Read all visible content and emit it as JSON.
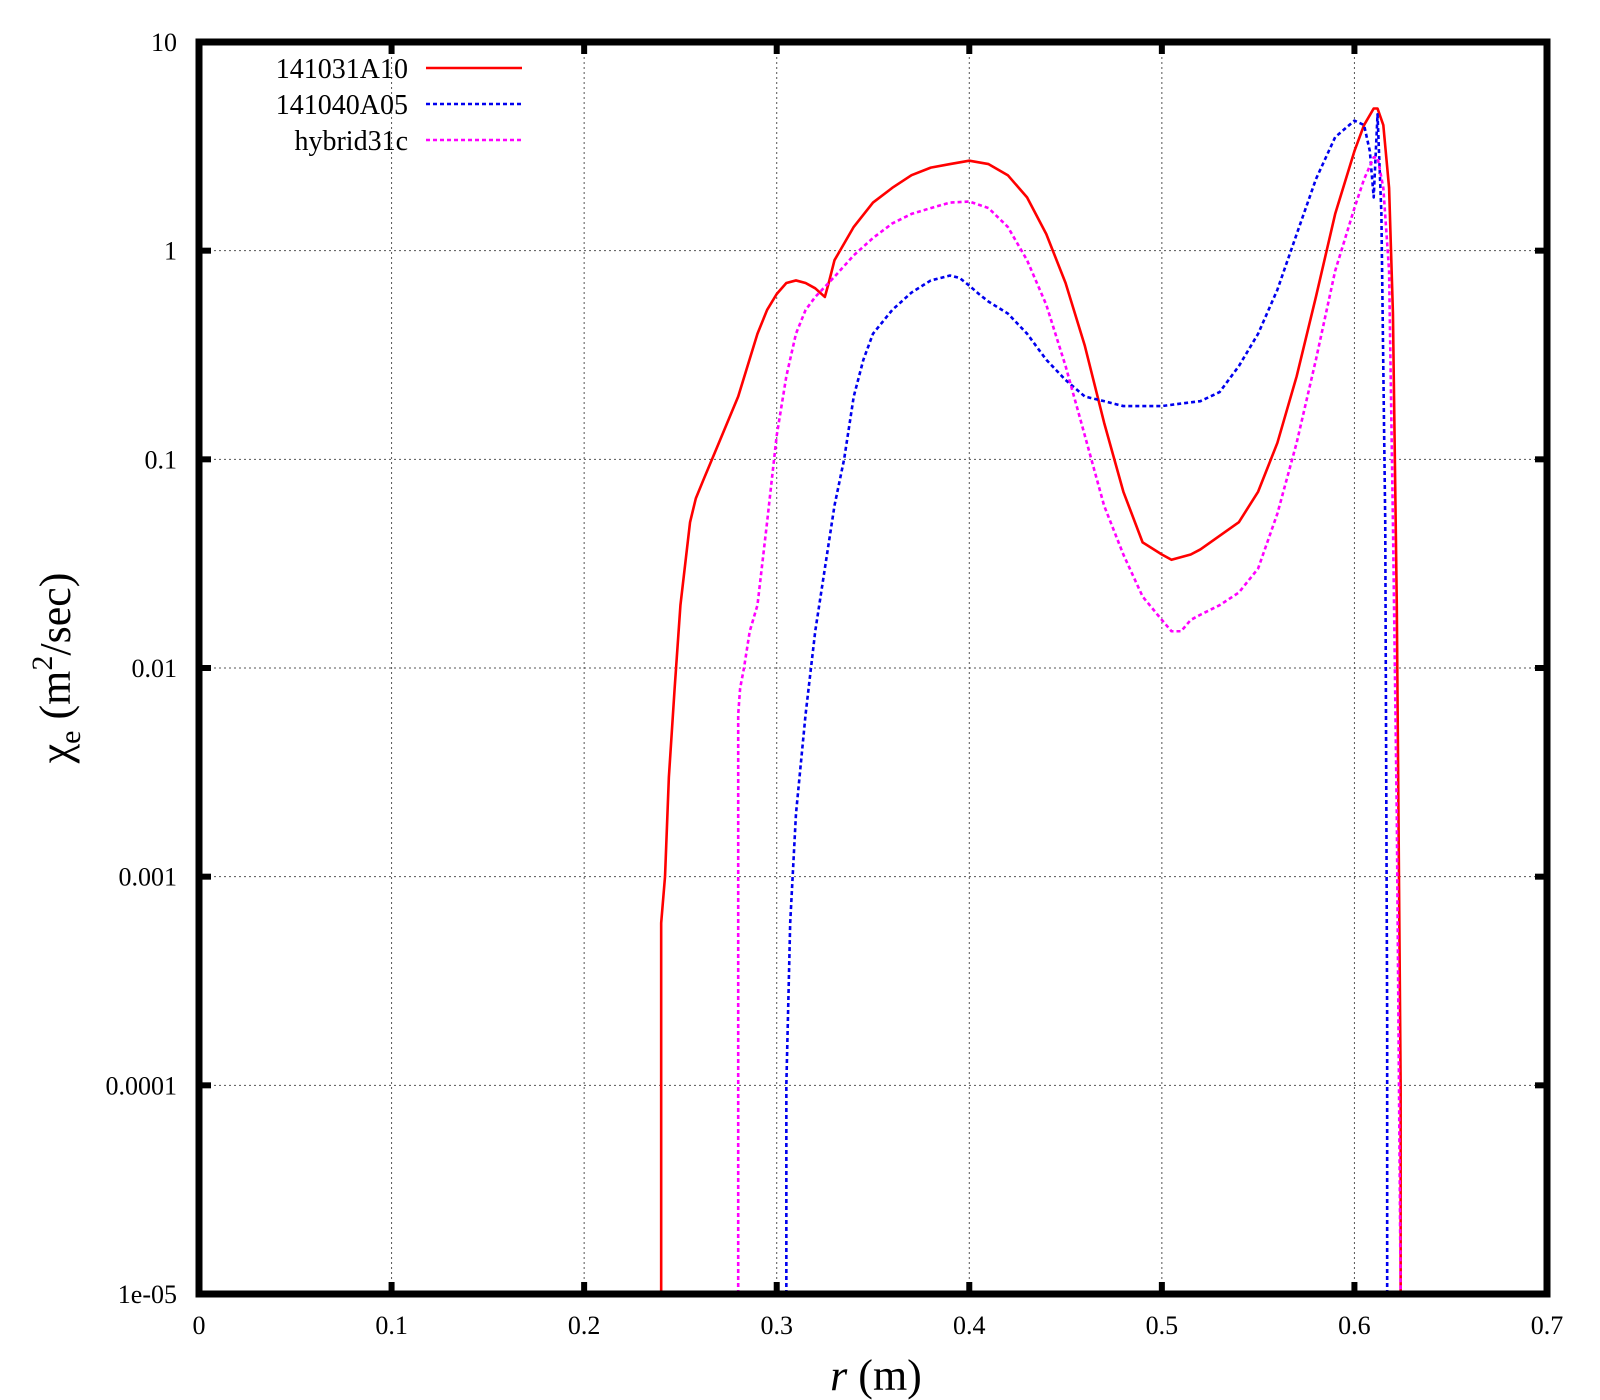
{
  "chart_data": {
    "type": "line",
    "title": "",
    "xlabel": {
      "var": "r",
      "unit": " (m)"
    },
    "ylabel": {
      "symbol": "χ",
      "sub": "e",
      "pre": " (m",
      "sup": "2",
      "post": "/sec)"
    },
    "xlim": [
      0,
      0.7
    ],
    "ylim": [
      1e-05,
      10
    ],
    "yscale": "log",
    "grid": true,
    "legend_position": "top-left",
    "x_ticks": [
      {
        "value": 0,
        "label": "0"
      },
      {
        "value": 0.1,
        "label": "0.1"
      },
      {
        "value": 0.2,
        "label": "0.2"
      },
      {
        "value": 0.3,
        "label": "0.3"
      },
      {
        "value": 0.4,
        "label": "0.4"
      },
      {
        "value": 0.5,
        "label": "0.5"
      },
      {
        "value": 0.6,
        "label": "0.6"
      },
      {
        "value": 0.7,
        "label": "0.7"
      }
    ],
    "y_ticks": [
      {
        "value": 1e-05,
        "label": "1e-05"
      },
      {
        "value": 0.0001,
        "label": "0.0001"
      },
      {
        "value": 0.001,
        "label": "0.001"
      },
      {
        "value": 0.01,
        "label": "0.01"
      },
      {
        "value": 0.1,
        "label": "0.1"
      },
      {
        "value": 1,
        "label": "1"
      },
      {
        "value": 10,
        "label": "10"
      }
    ],
    "series": [
      {
        "name": "141031A10",
        "color": "#ff0000",
        "dash": "solid",
        "x": [
          0.24,
          0.24,
          0.242,
          0.244,
          0.247,
          0.25,
          0.255,
          0.258,
          0.262,
          0.27,
          0.28,
          0.29,
          0.295,
          0.3,
          0.305,
          0.31,
          0.315,
          0.32,
          0.325,
          0.327,
          0.33,
          0.34,
          0.35,
          0.36,
          0.37,
          0.38,
          0.39,
          0.4,
          0.41,
          0.42,
          0.43,
          0.44,
          0.45,
          0.46,
          0.47,
          0.48,
          0.49,
          0.5,
          0.505,
          0.51,
          0.515,
          0.52,
          0.53,
          0.54,
          0.55,
          0.56,
          0.57,
          0.58,
          0.59,
          0.6,
          0.605,
          0.61,
          0.612,
          0.615,
          0.618,
          0.62,
          0.622,
          0.624,
          0.624
        ],
        "y": [
          1e-05,
          0.0006,
          0.001,
          0.003,
          0.008,
          0.02,
          0.05,
          0.065,
          0.08,
          0.12,
          0.2,
          0.4,
          0.52,
          0.62,
          0.7,
          0.72,
          0.7,
          0.66,
          0.6,
          0.7,
          0.9,
          1.3,
          1.7,
          2.0,
          2.3,
          2.5,
          2.6,
          2.7,
          2.6,
          2.3,
          1.8,
          1.2,
          0.7,
          0.35,
          0.15,
          0.07,
          0.04,
          0.035,
          0.033,
          0.034,
          0.035,
          0.037,
          0.043,
          0.05,
          0.07,
          0.12,
          0.25,
          0.6,
          1.5,
          3.0,
          4.0,
          4.8,
          4.8,
          4.0,
          2.0,
          0.5,
          0.02,
          0.0001,
          1e-05
        ]
      },
      {
        "name": "141040A05",
        "color": "#0000ee",
        "dash": "dotted",
        "x": [
          0.305,
          0.305,
          0.307,
          0.31,
          0.315,
          0.32,
          0.325,
          0.33,
          0.335,
          0.34,
          0.345,
          0.35,
          0.36,
          0.37,
          0.38,
          0.39,
          0.395,
          0.4,
          0.405,
          0.41,
          0.42,
          0.43,
          0.44,
          0.45,
          0.46,
          0.47,
          0.48,
          0.49,
          0.5,
          0.51,
          0.52,
          0.53,
          0.54,
          0.55,
          0.56,
          0.57,
          0.58,
          0.59,
          0.6,
          0.605,
          0.608,
          0.61,
          0.612,
          0.614,
          0.616,
          0.617,
          0.617
        ],
        "y": [
          1e-05,
          0.0001,
          0.0006,
          0.002,
          0.006,
          0.015,
          0.03,
          0.06,
          0.1,
          0.2,
          0.3,
          0.4,
          0.52,
          0.63,
          0.72,
          0.76,
          0.74,
          0.68,
          0.62,
          0.57,
          0.5,
          0.4,
          0.3,
          0.24,
          0.2,
          0.19,
          0.18,
          0.18,
          0.18,
          0.185,
          0.19,
          0.21,
          0.28,
          0.4,
          0.65,
          1.2,
          2.2,
          3.5,
          4.2,
          4.0,
          3.0,
          1.8,
          4.5,
          1.5,
          0.05,
          0.0002,
          1e-05
        ]
      },
      {
        "name": "hybrid31c",
        "color": "#ff00ff",
        "dash": "dotted",
        "x": [
          0.28,
          0.28,
          0.281,
          0.283,
          0.286,
          0.29,
          0.295,
          0.3,
          0.305,
          0.31,
          0.315,
          0.32,
          0.33,
          0.34,
          0.35,
          0.36,
          0.37,
          0.38,
          0.39,
          0.4,
          0.41,
          0.42,
          0.43,
          0.44,
          0.45,
          0.46,
          0.47,
          0.48,
          0.49,
          0.5,
          0.505,
          0.51,
          0.515,
          0.52,
          0.53,
          0.54,
          0.55,
          0.56,
          0.57,
          0.58,
          0.59,
          0.6,
          0.605,
          0.61,
          0.612,
          0.615,
          0.618,
          0.62,
          0.622,
          0.624,
          0.624
        ],
        "y": [
          1e-05,
          0.006,
          0.008,
          0.01,
          0.015,
          0.02,
          0.05,
          0.13,
          0.25,
          0.4,
          0.52,
          0.6,
          0.75,
          0.95,
          1.15,
          1.35,
          1.5,
          1.6,
          1.7,
          1.72,
          1.6,
          1.3,
          0.9,
          0.55,
          0.28,
          0.13,
          0.06,
          0.035,
          0.022,
          0.017,
          0.015,
          0.015,
          0.017,
          0.018,
          0.02,
          0.023,
          0.03,
          0.055,
          0.12,
          0.3,
          0.8,
          1.6,
          2.2,
          2.8,
          2.8,
          2.0,
          0.8,
          0.05,
          0.002,
          1e-05,
          1e-05
        ]
      }
    ]
  }
}
